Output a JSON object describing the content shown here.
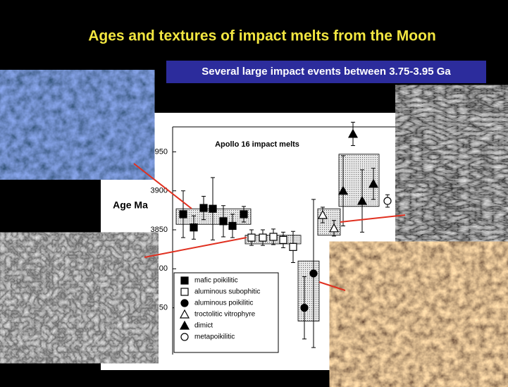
{
  "chart_data": {
    "type": "scatter",
    "title": "Ages and textures of impact melts from the Moon",
    "subtitle": "Several large impact events between 3.75-3.95 Ga",
    "chart_title": "Apollo 16 impact melts",
    "y_label": "Age Ma",
    "ylim": [
      3690,
      3982
    ],
    "yticks": [
      3750,
      3800,
      3850,
      3900,
      3950
    ],
    "series": [
      {
        "name": "mafic poikilitic",
        "marker": "square",
        "filled": true,
        "values": [
          3870,
          3853,
          3878,
          3877,
          3861,
          3855,
          3870
        ],
        "errors": [
          30,
          15,
          15,
          40,
          20,
          15,
          10
        ]
      },
      {
        "name": "aluminous subophitic",
        "marker": "square",
        "filled": false,
        "values": [
          3840,
          3840,
          3841,
          3837,
          3828
        ],
        "errors": [
          10,
          10,
          10,
          10,
          20
        ]
      },
      {
        "name": "aluminous poikilitic",
        "marker": "circle",
        "filled": true,
        "values": [
          3750,
          3794
        ],
        "errors": [
          40,
          95
        ]
      },
      {
        "name": "troctolitic vitrophyre",
        "marker": "triangle",
        "filled": false,
        "values": [
          3869,
          3852
        ],
        "errors": [
          10,
          10
        ]
      },
      {
        "name": "dimict",
        "marker": "triangle",
        "filled": true,
        "values": [
          3900,
          3973,
          3887,
          3909
        ],
        "errors": [
          45,
          15,
          40,
          20
        ]
      },
      {
        "name": "metapoikilitic",
        "marker": "circle",
        "filled": false,
        "values": [
          3887
        ],
        "errors": [
          8
        ]
      }
    ],
    "boxes": [
      {
        "low": 3857,
        "high": 3877
      },
      {
        "low": 3832,
        "high": 3843
      },
      {
        "low": 3733,
        "high": 3810
      },
      {
        "low": 3843,
        "high": 3877
      },
      {
        "low": 3880,
        "high": 3947
      }
    ]
  }
}
